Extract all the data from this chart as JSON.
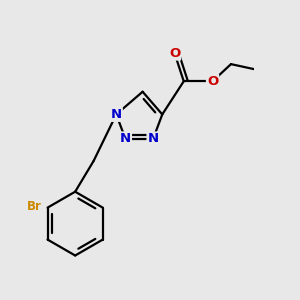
{
  "background_color": "#e8e8e8",
  "bond_color": "#000000",
  "n_color": "#0000cc",
  "o_color": "#cc0000",
  "br_color": "#cc8800",
  "line_width": 1.6,
  "font_size_atoms": 9.5,
  "font_size_br": 8.5,
  "xlim": [
    -1.2,
    2.2
  ],
  "ylim": [
    -2.8,
    2.0
  ],
  "figsize": [
    3.0,
    3.0
  ],
  "dpi": 100
}
